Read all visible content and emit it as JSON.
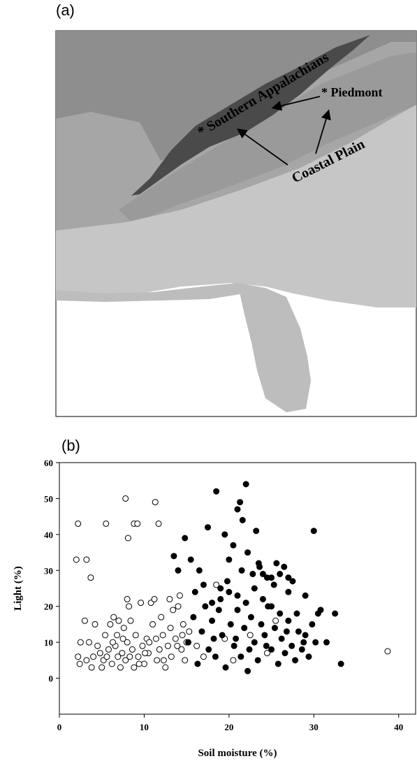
{
  "panel_a": {
    "label": "(a)",
    "regions": {
      "southern_appalachians": "* Southern Appalachians",
      "piedmont": "* Piedmont",
      "coastal_plain": "Coastal Plain"
    },
    "colors": {
      "outer_interior": "#8e8e8e",
      "mid_band": "#a6a6a6",
      "appalachians": "#4a4a4a",
      "piedmont": "#9a9a9a",
      "coastal": "#c6c6c6",
      "florida": "#bdbdbd"
    }
  },
  "panel_b": {
    "label": "(b)"
  },
  "chart_data": {
    "type": "scatter",
    "title": "",
    "xlabel": "Soil moisture (%)",
    "ylabel": "Light (%)",
    "xlim": [
      0,
      42
    ],
    "ylim": [
      -10,
      60
    ],
    "xticks": [
      0,
      10,
      20,
      30,
      40
    ],
    "yticks": [
      0,
      10,
      20,
      30,
      40,
      50,
      60
    ],
    "grid": false,
    "series": [
      {
        "marker": "open-circle",
        "points": [
          [
            2.2,
            43
          ],
          [
            2.0,
            33
          ],
          [
            3.2,
            33
          ],
          [
            3.7,
            28
          ],
          [
            5.5,
            43
          ],
          [
            7.8,
            50
          ],
          [
            8.1,
            39
          ],
          [
            8.8,
            43
          ],
          [
            9.2,
            43
          ],
          [
            11.3,
            49
          ],
          [
            11.7,
            43
          ],
          [
            2.2,
            6
          ],
          [
            2.4,
            4
          ],
          [
            3.0,
            16
          ],
          [
            3.2,
            5
          ],
          [
            3.5,
            10
          ],
          [
            4.0,
            6
          ],
          [
            4.2,
            15
          ],
          [
            4.8,
            7
          ],
          [
            5.0,
            3
          ],
          [
            5.2,
            5
          ],
          [
            5.4,
            12
          ],
          [
            5.8,
            8
          ],
          [
            6.0,
            15
          ],
          [
            6.2,
            4
          ],
          [
            6.4,
            17
          ],
          [
            6.6,
            9
          ],
          [
            6.8,
            12
          ],
          [
            7.0,
            16
          ],
          [
            7.2,
            3
          ],
          [
            7.4,
            7
          ],
          [
            7.6,
            14
          ],
          [
            7.8,
            5
          ],
          [
            8.0,
            22
          ],
          [
            8.0,
            10
          ],
          [
            8.2,
            20
          ],
          [
            8.4,
            16
          ],
          [
            8.6,
            8
          ],
          [
            8.8,
            3
          ],
          [
            9.0,
            12
          ],
          [
            9.3,
            6
          ],
          [
            9.6,
            21
          ],
          [
            9.8,
            9
          ],
          [
            10.0,
            4
          ],
          [
            10.3,
            11
          ],
          [
            10.5,
            7
          ],
          [
            10.8,
            21
          ],
          [
            11.0,
            15
          ],
          [
            11.2,
            22
          ],
          [
            11.5,
            5
          ],
          [
            11.8,
            8
          ],
          [
            12.0,
            17
          ],
          [
            12.2,
            12
          ],
          [
            12.5,
            3
          ],
          [
            12.8,
            9
          ],
          [
            13.0,
            22
          ],
          [
            13.2,
            6
          ],
          [
            13.4,
            19
          ],
          [
            13.7,
            11
          ],
          [
            14.0,
            20
          ],
          [
            14.2,
            23
          ],
          [
            14.4,
            8
          ],
          [
            14.6,
            15
          ],
          [
            14.8,
            5
          ],
          [
            15.0,
            10
          ],
          [
            15.3,
            13
          ],
          [
            16.2,
            9
          ],
          [
            17.0,
            6
          ],
          [
            18.5,
            26
          ],
          [
            19.5,
            11
          ],
          [
            20.5,
            5
          ],
          [
            22.5,
            12
          ],
          [
            24.5,
            7
          ],
          [
            25.5,
            16
          ],
          [
            38.7,
            7.5
          ],
          [
            2.5,
            10
          ],
          [
            3.8,
            3
          ],
          [
            4.5,
            9
          ],
          [
            5.6,
            6
          ],
          [
            6.3,
            10
          ],
          [
            6.9,
            6
          ],
          [
            7.5,
            11
          ],
          [
            8.3,
            6
          ],
          [
            9.4,
            4
          ],
          [
            10.1,
            7
          ],
          [
            10.6,
            10
          ],
          [
            11.4,
            11
          ],
          [
            12.3,
            5
          ],
          [
            13.1,
            14
          ],
          [
            13.9,
            9
          ],
          [
            14.5,
            12
          ]
        ]
      },
      {
        "marker": "filled-circle",
        "points": [
          [
            13.5,
            34
          ],
          [
            14.0,
            30
          ],
          [
            14.8,
            39
          ],
          [
            15.5,
            33
          ],
          [
            16.5,
            30
          ],
          [
            17.5,
            42
          ],
          [
            18.5,
            52
          ],
          [
            19.0,
            22
          ],
          [
            19.5,
            40
          ],
          [
            20.0,
            33
          ],
          [
            20.5,
            37
          ],
          [
            21.0,
            47
          ],
          [
            21.3,
            49
          ],
          [
            21.6,
            44
          ],
          [
            22.0,
            54
          ],
          [
            22.2,
            35
          ],
          [
            22.8,
            29
          ],
          [
            23.2,
            41
          ],
          [
            23.6,
            31
          ],
          [
            24.0,
            29
          ],
          [
            24.5,
            28
          ],
          [
            25.0,
            28
          ],
          [
            25.6,
            32
          ],
          [
            26.0,
            29
          ],
          [
            26.5,
            31
          ],
          [
            27.0,
            28
          ],
          [
            27.5,
            27
          ],
          [
            28.0,
            18
          ],
          [
            29.0,
            23
          ],
          [
            30.0,
            41
          ],
          [
            30.5,
            18
          ],
          [
            31.5,
            10
          ],
          [
            32.5,
            18
          ],
          [
            33.2,
            4
          ],
          [
            15.2,
            10
          ],
          [
            15.8,
            17
          ],
          [
            16.3,
            4
          ],
          [
            16.8,
            13
          ],
          [
            17.2,
            20
          ],
          [
            17.6,
            8
          ],
          [
            18.0,
            16
          ],
          [
            18.4,
            6
          ],
          [
            18.8,
            19
          ],
          [
            19.2,
            12
          ],
          [
            19.6,
            3
          ],
          [
            20.2,
            15
          ],
          [
            20.6,
            9
          ],
          [
            21.0,
            19
          ],
          [
            21.4,
            6
          ],
          [
            21.8,
            14
          ],
          [
            22.2,
            2
          ],
          [
            22.6,
            17
          ],
          [
            23.0,
            10
          ],
          [
            23.4,
            5
          ],
          [
            23.8,
            15
          ],
          [
            24.2,
            12
          ],
          [
            24.6,
            20
          ],
          [
            25.0,
            8
          ],
          [
            25.4,
            14
          ],
          [
            25.8,
            4
          ],
          [
            26.2,
            11
          ],
          [
            26.6,
            7
          ],
          [
            27.0,
            16
          ],
          [
            27.4,
            9
          ],
          [
            27.8,
            5
          ],
          [
            28.2,
            13
          ],
          [
            28.6,
            8
          ],
          [
            29.0,
            12
          ],
          [
            29.4,
            6
          ],
          [
            29.8,
            15
          ],
          [
            30.2,
            10
          ],
          [
            30.8,
            19
          ],
          [
            16.0,
            24
          ],
          [
            17.0,
            26
          ],
          [
            18.0,
            21
          ],
          [
            19.0,
            25
          ],
          [
            20.0,
            24
          ],
          [
            21.0,
            23
          ],
          [
            22.0,
            21
          ],
          [
            23.0,
            25
          ],
          [
            24.0,
            22
          ],
          [
            25.0,
            20
          ],
          [
            26.0,
            18
          ],
          [
            27.0,
            24
          ],
          [
            19.8,
            27
          ],
          [
            21.5,
            30
          ],
          [
            23.5,
            32
          ],
          [
            25.3,
            26
          ],
          [
            18.2,
            11
          ],
          [
            20.8,
            11
          ],
          [
            22.4,
            8
          ],
          [
            24.4,
            9
          ],
          [
            26.8,
            13
          ],
          [
            28.8,
            10
          ]
        ]
      }
    ]
  }
}
